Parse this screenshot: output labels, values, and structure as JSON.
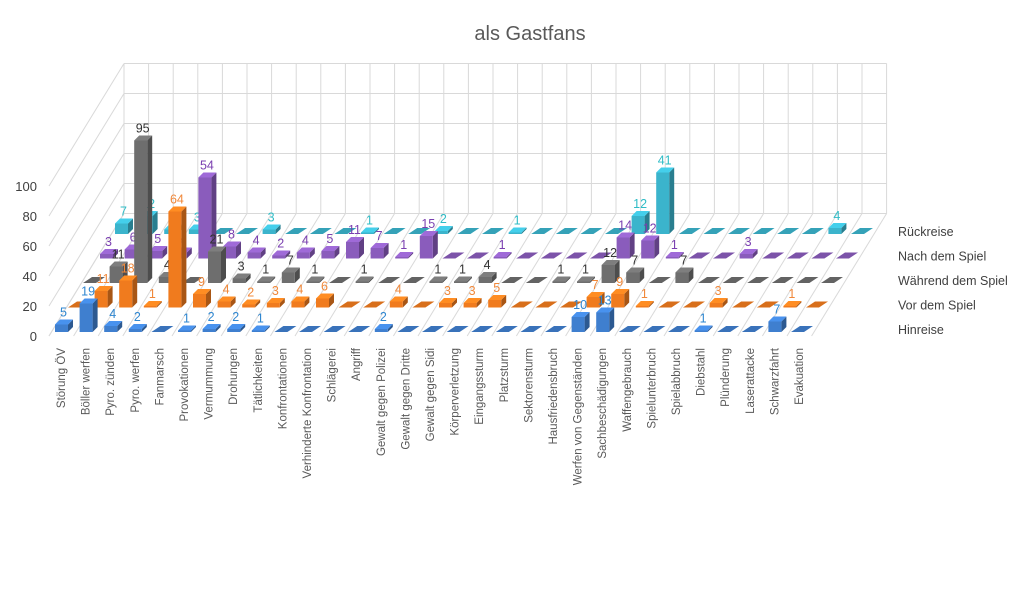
{
  "chart_data": {
    "type": "bar",
    "variant": "3d-column",
    "title": "als Gastfans",
    "xlabel": "",
    "ylabel": "",
    "ylim": [
      0,
      100
    ],
    "yticks": [
      0,
      20,
      40,
      60,
      80,
      100
    ],
    "grid": true,
    "legend": "right",
    "categories": [
      "Störung ÖV",
      "Böller werfen",
      "Pyro. zünden",
      "Pyro. werfen",
      "Fanmarsch",
      "Provokationen",
      "Vermummung",
      "Drohungen",
      "Tätlichkeiten",
      "Konfrontationen",
      "Verhinderte Konfrontation",
      "Schlägerei",
      "Angriff",
      "Gewalt gegen Polizei",
      "Gewalt gegen Dritte",
      "Gewalt gegen Sidi",
      "Körperverletzung",
      "Eingangssturm",
      "Platzsturm",
      "Sektorensturm",
      "Hausfriedensbruch",
      "Werfen von Gegenständen",
      "Sachbeschädigungen",
      "Waffengebrauch",
      "Spielunterbruch",
      "Spielabbruch",
      "Diebstahl",
      "Plünderung",
      "Laserattacke",
      "Schwarzfahrt",
      "Evakuation"
    ],
    "series": [
      {
        "name": "Hinreise",
        "color": "#3f7fcf",
        "label_color": "#2e86d0",
        "values": [
          5,
          19,
          4,
          2,
          0,
          1,
          2,
          2,
          1,
          0,
          0,
          0,
          0,
          2,
          0,
          0,
          0,
          0,
          0,
          0,
          0,
          10,
          13,
          0,
          0,
          0,
          1,
          0,
          0,
          7,
          0
        ]
      },
      {
        "name": "Vor dem Spiel",
        "color": "#f07b1e",
        "label_color": "#f0883a",
        "values": [
          0,
          11,
          18,
          1,
          64,
          9,
          4,
          2,
          3,
          4,
          6,
          0,
          0,
          4,
          0,
          3,
          3,
          5,
          0,
          0,
          0,
          7,
          9,
          1,
          0,
          0,
          3,
          0,
          0,
          1,
          0
        ]
      },
      {
        "name": "Während dem Spiel",
        "color": "#6e6e6e",
        "label_color": "#333333",
        "values": [
          0,
          11,
          95,
          4,
          0,
          21,
          3,
          1,
          7,
          1,
          0,
          1,
          0,
          0,
          1,
          1,
          4,
          0,
          0,
          1,
          1,
          12,
          7,
          0,
          7,
          0,
          0,
          0,
          0,
          0,
          0
        ]
      },
      {
        "name": "Nach dem Spiel",
        "color": "#8a5cbc",
        "label_color": "#7a3fb0",
        "values": [
          3,
          6,
          5,
          4,
          54,
          8,
          4,
          2,
          4,
          5,
          11,
          7,
          1,
          15,
          0,
          0,
          1,
          0,
          0,
          0,
          0,
          14,
          12,
          1,
          0,
          0,
          3,
          0,
          0,
          0,
          0
        ]
      },
      {
        "name": "Rückreise",
        "color": "#3bb4cc",
        "label_color": "#2fbcc6",
        "values": [
          7,
          12,
          3,
          3,
          0,
          0,
          3,
          0,
          0,
          0,
          1,
          0,
          0,
          2,
          0,
          0,
          1,
          0,
          0,
          0,
          0,
          12,
          41,
          0,
          0,
          0,
          0,
          0,
          0,
          4,
          0
        ]
      }
    ]
  }
}
